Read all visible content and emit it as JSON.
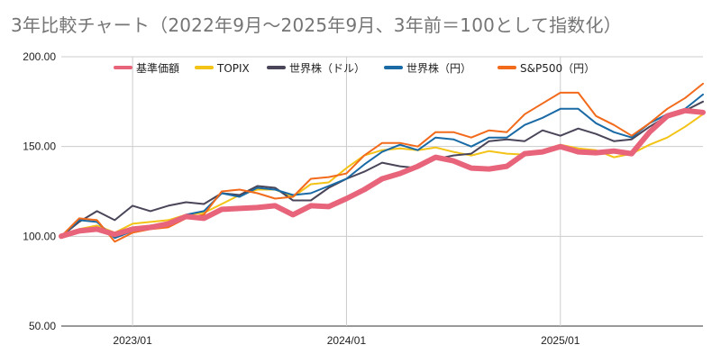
{
  "chart_data": {
    "type": "line",
    "title": "3年比較チャート（2022年9月〜2025年9月、3年前＝100として指数化）",
    "ylim": [
      50,
      200
    ],
    "yticks": [
      "50.00",
      "100.00",
      "150.00",
      "200.00"
    ],
    "yticks_values": [
      50,
      100,
      150,
      200
    ],
    "x": [
      "2022/09",
      "2022/10",
      "2022/11",
      "2022/12",
      "2023/01",
      "2023/02",
      "2023/03",
      "2023/04",
      "2023/05",
      "2023/06",
      "2023/07",
      "2023/08",
      "2023/09",
      "2023/10",
      "2023/11",
      "2023/12",
      "2024/01",
      "2024/02",
      "2024/03",
      "2024/04",
      "2024/05",
      "2024/06",
      "2024/07",
      "2024/08",
      "2024/09",
      "2024/10",
      "2024/11",
      "2024/12",
      "2025/01",
      "2025/02",
      "2025/03",
      "2025/04",
      "2025/05",
      "2025/06",
      "2025/07",
      "2025/08",
      "2025/09"
    ],
    "xticks": [
      "2023/01",
      "2024/01",
      "2025/01"
    ],
    "grid": true,
    "legend_position": "top",
    "series": [
      {
        "name": "基準価額",
        "color": "#e8647a",
        "width": 6,
        "values": [
          100,
          103,
          104,
          101,
          104,
          105,
          107,
          111,
          110,
          115,
          115.5,
          116,
          117,
          112,
          117,
          116.5,
          121,
          126,
          132,
          135,
          139,
          144,
          142,
          138,
          137.5,
          139,
          146,
          147,
          150,
          147,
          146.5,
          147.5,
          146,
          158,
          167,
          170,
          169
        ]
      },
      {
        "name": "TOPIX",
        "color": "#f3c317",
        "width": 2,
        "values": [
          100,
          104,
          106,
          102,
          107,
          108,
          109,
          112,
          113,
          118,
          123,
          126,
          126,
          122,
          129,
          130,
          138,
          145,
          148,
          149,
          148,
          149.5,
          147,
          145,
          147.5,
          146,
          145.5,
          148,
          151,
          149,
          148,
          144,
          146,
          151,
          155,
          161,
          168
        ]
      },
      {
        "name": "世界株（ドル）",
        "color": "#4a4558",
        "width": 2,
        "values": [
          100,
          108,
          114,
          109,
          117,
          114,
          117,
          119,
          118,
          124,
          123,
          128,
          127,
          120,
          120,
          127,
          132,
          136,
          141,
          139,
          138,
          143,
          145,
          146,
          153,
          154,
          153,
          159,
          156,
          160,
          157,
          153,
          154,
          161,
          167,
          170,
          175
        ]
      },
      {
        "name": "世界株（円）",
        "color": "#1a6aa6",
        "width": 2,
        "values": [
          100,
          109,
          108,
          99,
          103,
          106,
          107,
          112,
          114,
          124,
          122,
          127,
          126,
          123,
          124,
          128,
          132,
          140,
          147,
          151,
          148,
          155,
          154,
          150,
          155,
          155,
          162,
          166,
          171,
          171,
          163,
          158,
          155,
          163,
          168,
          171,
          179
        ]
      },
      {
        "name": "S&P500（円）",
        "color": "#f26a1b",
        "width": 2,
        "values": [
          100,
          110,
          109,
          97,
          102,
          104,
          105,
          110,
          112,
          125,
          126,
          124,
          121,
          122,
          132,
          133,
          135,
          145,
          152,
          152,
          150,
          158,
          158,
          155,
          159,
          158,
          168,
          174,
          180,
          180,
          167,
          162,
          156,
          163,
          171,
          177,
          185
        ]
      }
    ]
  }
}
